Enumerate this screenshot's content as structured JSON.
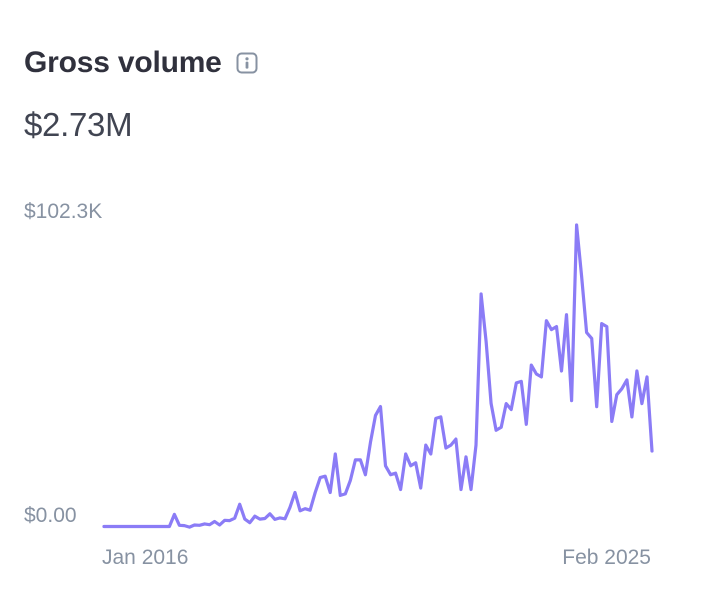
{
  "header": {
    "title": "Gross volume",
    "info_icon": "info-icon"
  },
  "total": {
    "value": "$2.73M"
  },
  "chart_data": {
    "type": "line",
    "title": "Gross volume",
    "xlabel": "",
    "ylabel": "",
    "y_tick_labels": [
      "$102.3K",
      "$0.00"
    ],
    "x_tick_labels": [
      "Jan 2016",
      "Feb 2025"
    ],
    "ylim": [
      0,
      102300
    ],
    "xlim": [
      0,
      109
    ],
    "grid": false,
    "line_color": "#8b7cf6",
    "series": [
      {
        "values": [
          500,
          500,
          500,
          500,
          500,
          500,
          500,
          500,
          500,
          500,
          500,
          500,
          500,
          500,
          4600,
          900,
          800,
          300,
          1000,
          900,
          1400,
          1100,
          2200,
          1000,
          2600,
          2500,
          3300,
          8000,
          3000,
          1800,
          4000,
          3000,
          3200,
          4800,
          2900,
          3400,
          3100,
          7000,
          12000,
          5800,
          6500,
          6000,
          12000,
          17000,
          17500,
          12000,
          25000,
          11000,
          11500,
          16000,
          23000,
          23000,
          18000,
          29000,
          38000,
          41000,
          21000,
          18000,
          18500,
          13000,
          25000,
          21000,
          22000,
          13500,
          28000,
          25000,
          37000,
          37500,
          27000,
          28000,
          30000,
          13000,
          24000,
          13000,
          28000,
          79000,
          63000,
          42000,
          33000,
          34000,
          42000,
          40000,
          49000,
          49500,
          35000,
          55000,
          52000,
          51000,
          70000,
          67000,
          68000,
          53000,
          72000,
          43000,
          102300,
          85000,
          66000,
          64000,
          41000,
          69000,
          68000,
          36000,
          45000,
          47000,
          50000,
          37500,
          53000,
          42000,
          51000,
          26000
        ]
      }
    ]
  }
}
